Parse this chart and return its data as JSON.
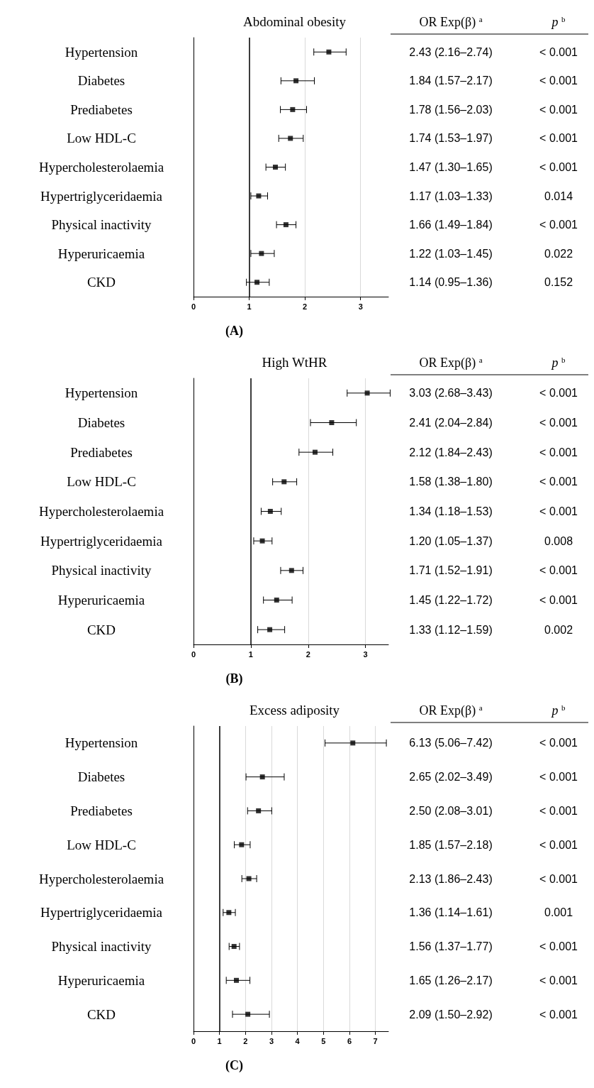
{
  "chart_data": [
    {
      "type": "scatter",
      "title": "Abdominal obesity",
      "categories": [
        "Hypertension",
        "Diabetes",
        "Prediabetes",
        "Low HDL-C",
        "Hypercholesterolaemia",
        "Hypertriglyceridaemia",
        "Physical inactivity",
        "Hyperuricaemia",
        "CKD"
      ],
      "color": "#000000",
      "values": [
        2.43,
        1.84,
        1.78,
        1.74,
        1.47,
        1.17,
        1.66,
        1.22,
        1.14
      ],
      "errors": [
        [
          2.16,
          2.74
        ],
        [
          1.57,
          2.17
        ],
        [
          1.56,
          2.03
        ],
        [
          1.53,
          1.97
        ],
        [
          1.3,
          1.65
        ],
        [
          1.03,
          1.33
        ],
        [
          1.49,
          1.84
        ],
        [
          1.03,
          1.45
        ],
        [
          0.95,
          1.36
        ]
      ],
      "value_labels": [
        "2.43 (2.16–2.74)",
        "1.84 (1.57–2.17)",
        "1.78 (1.56–2.03)",
        "1.74 (1.53–1.97)",
        "1.47 (1.30–1.65)",
        "1.17 (1.03–1.33)",
        "1.66 (1.49–1.84)",
        "1.22 (1.03–1.45)",
        "1.14 (0.95–1.36)"
      ],
      "orientation": "horizontal",
      "xlim": [
        0,
        3.5
      ],
      "xticks": [
        0,
        1,
        2,
        3
      ],
      "grid": "x",
      "marker": "square",
      "ref_lines": [
        {
          "axis": "x",
          "value": 1,
          "color": "#000000"
        }
      ],
      "annotations": [
        "OR Exp(β) $^{a}$",
        "p $^{b}$",
        "(A)",
        "< 0.001",
        "< 0.001",
        "< 0.001",
        "< 0.001",
        "< 0.001",
        "0.014",
        "< 0.001",
        "0.022",
        "0.152"
      ]
    },
    {
      "type": "scatter",
      "title": "High WtHR",
      "categories": [
        "Hypertension",
        "Diabetes",
        "Prediabetes",
        "Low HDL-C",
        "Hypercholesterolaemia",
        "Hypertriglyceridaemia",
        "Physical inactivity",
        "Hyperuricaemia",
        "CKD"
      ],
      "color": "#000000",
      "values": [
        3.03,
        2.41,
        2.12,
        1.58,
        1.34,
        1.2,
        1.71,
        1.45,
        1.33
      ],
      "errors": [
        [
          2.68,
          3.43
        ],
        [
          2.04,
          2.84
        ],
        [
          1.84,
          2.43
        ],
        [
          1.38,
          1.8
        ],
        [
          1.18,
          1.53
        ],
        [
          1.05,
          1.37
        ],
        [
          1.52,
          1.91
        ],
        [
          1.22,
          1.72
        ],
        [
          1.12,
          1.59
        ]
      ],
      "value_labels": [
        "3.03 (2.68–3.43)",
        "2.41 (2.04–2.84)",
        "2.12 (1.84–2.43)",
        "1.58 (1.38–1.80)",
        "1.34 (1.18–1.53)",
        "1.20 (1.05–1.37)",
        "1.71 (1.52–1.91)",
        "1.45 (1.22–1.72)",
        "1.33 (1.12–1.59)"
      ],
      "orientation": "horizontal",
      "xlim": [
        0,
        3.4
      ],
      "xticks": [
        0,
        1,
        2,
        3
      ],
      "grid": "x",
      "marker": "square",
      "ref_lines": [
        {
          "axis": "x",
          "value": 1,
          "color": "#000000"
        }
      ],
      "annotations": [
        "OR Exp(β) $^{a}$",
        "p $^{b}$",
        "(B)",
        "< 0.001",
        "< 0.001",
        "< 0.001",
        "< 0.001",
        "< 0.001",
        "0.008",
        "< 0.001",
        "< 0.001",
        "0.002"
      ]
    },
    {
      "type": "scatter",
      "title": "Excess adiposity",
      "categories": [
        "Hypertension",
        "Diabetes",
        "Prediabetes",
        "Low HDL-C",
        "Hypercholesterolaemia",
        "Hypertriglyceridaemia",
        "Physical inactivity",
        "Hyperuricaemia",
        "CKD"
      ],
      "color": "#000000",
      "values": [
        6.13,
        2.65,
        2.5,
        1.85,
        2.13,
        1.36,
        1.56,
        1.65,
        2.09
      ],
      "errors": [
        [
          5.06,
          7.42
        ],
        [
          2.02,
          3.49
        ],
        [
          2.08,
          3.01
        ],
        [
          1.57,
          2.18
        ],
        [
          1.86,
          2.43
        ],
        [
          1.14,
          1.61
        ],
        [
          1.37,
          1.77
        ],
        [
          1.26,
          2.17
        ],
        [
          1.5,
          2.92
        ]
      ],
      "value_labels": [
        "6.13 (5.06–7.42)",
        "2.65 (2.02–3.49)",
        "2.50 (2.08–3.01)",
        "1.85 (1.57–2.18)",
        "2.13 (1.86–2.43)",
        "1.36 (1.14–1.61)",
        "1.56 (1.37–1.77)",
        "1.65 (1.26–2.17)",
        "2.09 (1.50–2.92)"
      ],
      "orientation": "horizontal",
      "xlim": [
        0,
        7.5
      ],
      "xticks": [
        0,
        1,
        2,
        3,
        4,
        5,
        6,
        7
      ],
      "grid": "x",
      "marker": "square",
      "ref_lines": [
        {
          "axis": "x",
          "value": 1,
          "color": "#000000"
        }
      ],
      "annotations": [
        "OR Exp(β) $^{a}$",
        "p $^{b}$",
        "(C)",
        "< 0.001",
        "< 0.001",
        "< 0.001",
        "< 0.001",
        "< 0.001",
        "0.001",
        "< 0.001",
        "< 0.001",
        "< 0.001"
      ]
    }
  ]
}
